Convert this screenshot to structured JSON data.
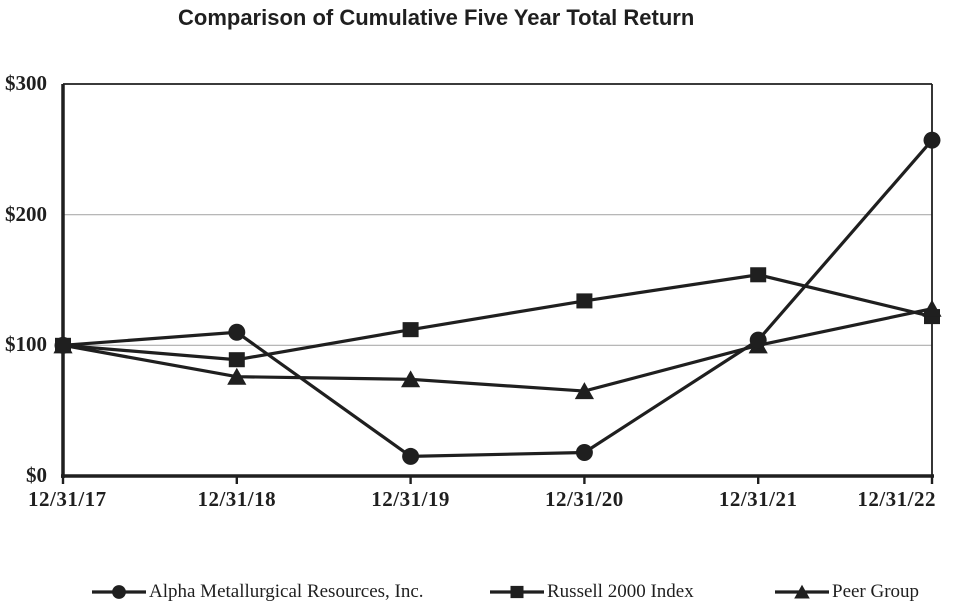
{
  "title": "Comparison of Cumulative Five Year Total Return",
  "chart_data": {
    "type": "line",
    "title": "Comparison of Cumulative Five Year Total Return",
    "categories": [
      "12/31/17",
      "12/31/18",
      "12/31/19",
      "12/31/20",
      "12/31/21",
      "12/31/22"
    ],
    "series": [
      {
        "name": "Alpha Metallurgical Resources, Inc.",
        "marker": "circle",
        "values": [
          100,
          110,
          15,
          18,
          104,
          257
        ]
      },
      {
        "name": "Russell 2000 Index",
        "marker": "square",
        "values": [
          100,
          89,
          112,
          134,
          154,
          122
        ]
      },
      {
        "name": "Peer Group",
        "marker": "triangle",
        "values": [
          100,
          76,
          74,
          65,
          100,
          128
        ]
      }
    ],
    "xlabel": "",
    "ylabel": "",
    "ylim": [
      0,
      300
    ],
    "y_ticks": [
      {
        "label": "$0",
        "value": 0,
        "grid": false
      },
      {
        "label": "$100",
        "value": 100,
        "grid": true
      },
      {
        "label": "$200",
        "value": 200,
        "grid": true
      },
      {
        "label": "$300",
        "value": 300,
        "grid": false
      }
    ],
    "grid": "horizontal",
    "legend_position": "bottom",
    "colors": {
      "series": "#1f1f1f",
      "gridline": "#adadad",
      "background": "#ffffff",
      "text": "#1f1f1f"
    }
  }
}
